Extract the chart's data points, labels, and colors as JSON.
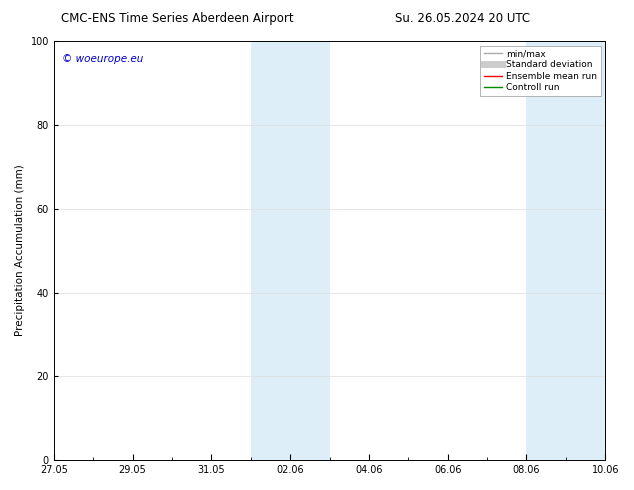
{
  "title_left": "CMC-ENS Time Series Aberdeen Airport",
  "title_right": "Su. 26.05.2024 20 UTC",
  "ylabel": "Precipitation Accumulation (mm)",
  "watermark": "© woeurope.eu",
  "watermark_color": "#0000cc",
  "ylim": [
    0,
    100
  ],
  "yticks": [
    0,
    20,
    40,
    60,
    80,
    100
  ],
  "x_start_date": "2024-05-27",
  "x_end_date": "2024-06-10",
  "xtick_labels": [
    "27.05",
    "29.05",
    "31.05",
    "02.06",
    "04.06",
    "06.06",
    "08.06",
    "10.06"
  ],
  "xtick_positions_days": [
    0,
    2,
    4,
    6,
    8,
    10,
    12,
    14
  ],
  "shaded_regions": [
    {
      "start": 5,
      "end": 7
    },
    {
      "start": 12,
      "end": 14
    }
  ],
  "shaded_color": "#ddeef8",
  "background_color": "#ffffff",
  "legend_entries": [
    {
      "label": "min/max",
      "color": "#aaaaaa",
      "lw": 1.0
    },
    {
      "label": "Standard deviation",
      "color": "#cccccc",
      "lw": 5.0
    },
    {
      "label": "Ensemble mean run",
      "color": "#ff0000",
      "lw": 1.0
    },
    {
      "label": "Controll run",
      "color": "#008800",
      "lw": 1.0
    }
  ],
  "font_size_title": 8.5,
  "font_size_axis": 7.5,
  "font_size_ticks": 7.0,
  "font_size_legend": 6.5,
  "font_size_watermark": 7.5
}
